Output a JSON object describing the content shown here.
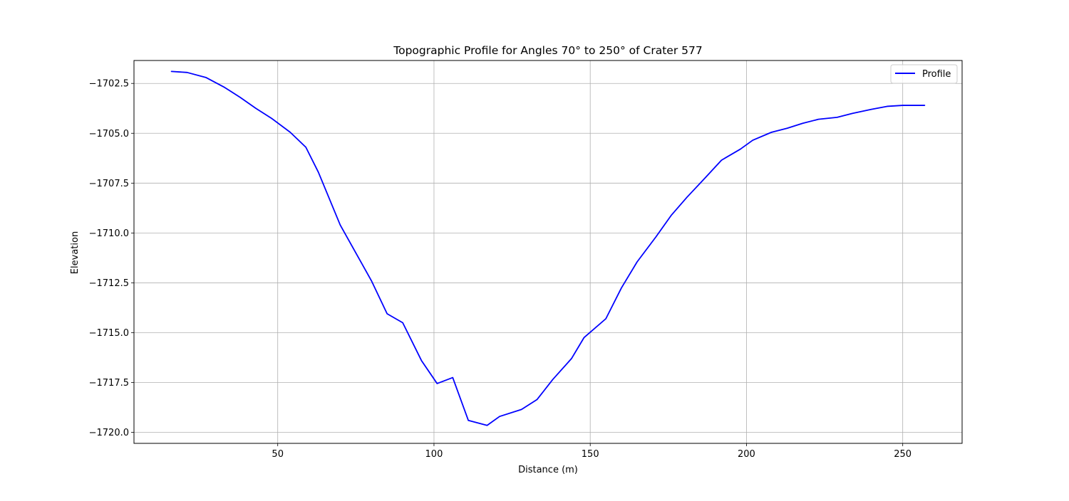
{
  "chart_data": {
    "type": "line",
    "title": "Topographic Profile for Angles 70° to 250° of Crater 577",
    "xlabel": "Distance (m)",
    "ylabel": "Elevation",
    "xlim": [
      4,
      269
    ],
    "ylim": [
      -1720.55,
      -1701.35
    ],
    "xticks": [
      50,
      100,
      150,
      200,
      250
    ],
    "yticks": [
      -1720.0,
      -1717.5,
      -1715.0,
      -1712.5,
      -1710.0,
      -1707.5,
      -1705.0,
      -1702.5
    ],
    "xtick_labels": [
      "50",
      "100",
      "150",
      "200",
      "250"
    ],
    "ytick_labels": [
      "−1720.0",
      "−1717.5",
      "−1715.0",
      "−1712.5",
      "−1710.0",
      "−1707.5",
      "−1705.0",
      "−1702.5"
    ],
    "grid": true,
    "legend_position": "top-right",
    "series": [
      {
        "name": "Profile",
        "color": "#0000ff",
        "x": [
          16,
          21,
          27,
          33,
          38,
          43,
          48,
          54,
          59,
          63,
          70,
          75,
          80,
          85,
          90,
          96,
          101,
          106,
          111,
          117,
          121,
          128,
          133,
          138,
          144,
          148,
          155,
          160,
          165,
          171,
          176,
          181,
          187,
          192,
          198,
          202,
          208,
          213,
          218,
          223,
          229,
          234,
          240,
          245,
          250,
          257
        ],
        "y": [
          -1701.9,
          -1701.95,
          -1702.2,
          -1702.7,
          -1703.2,
          -1703.75,
          -1704.25,
          -1704.95,
          -1705.7,
          -1706.95,
          -1709.6,
          -1711.0,
          -1712.4,
          -1714.05,
          -1714.5,
          -1716.4,
          -1717.55,
          -1717.25,
          -1719.4,
          -1719.65,
          -1719.2,
          -1718.85,
          -1718.35,
          -1717.35,
          -1716.3,
          -1715.25,
          -1714.3,
          -1712.75,
          -1711.45,
          -1710.2,
          -1709.1,
          -1708.2,
          -1707.2,
          -1706.35,
          -1705.8,
          -1705.35,
          -1704.95,
          -1704.75,
          -1704.5,
          -1704.3,
          -1704.2,
          -1704.0,
          -1703.8,
          -1703.65,
          -1703.6,
          -1703.6
        ]
      }
    ]
  }
}
